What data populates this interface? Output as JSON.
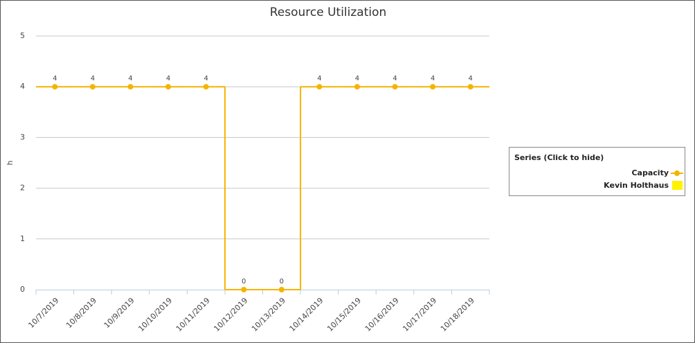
{
  "chart_data": {
    "type": "line",
    "step": true,
    "title": "Resource Utilization",
    "y_label": "h",
    "categories": [
      "10/7/2019",
      "10/8/2019",
      "10/9/2019",
      "10/10/2019",
      "10/11/2019",
      "10/12/2019",
      "10/13/2019",
      "10/14/2019",
      "10/15/2019",
      "10/16/2019",
      "10/17/2019",
      "10/18/2019"
    ],
    "series": [
      {
        "name": "Capacity",
        "color": "#f5b400",
        "values": [
          4,
          4,
          4,
          4,
          4,
          0,
          0,
          4,
          4,
          4,
          4,
          4
        ]
      },
      {
        "name": "Kevin Holthaus",
        "color": "#fff200",
        "values": [
          null,
          null,
          null,
          null,
          null,
          null,
          null,
          null,
          null,
          null,
          null,
          null
        ]
      }
    ],
    "ylim": [
      0,
      5
    ],
    "yticks": [
      0,
      1,
      2,
      3,
      4,
      5
    ],
    "grid": true,
    "legend": {
      "title": "Series (Click to hide)",
      "position": "right"
    }
  }
}
